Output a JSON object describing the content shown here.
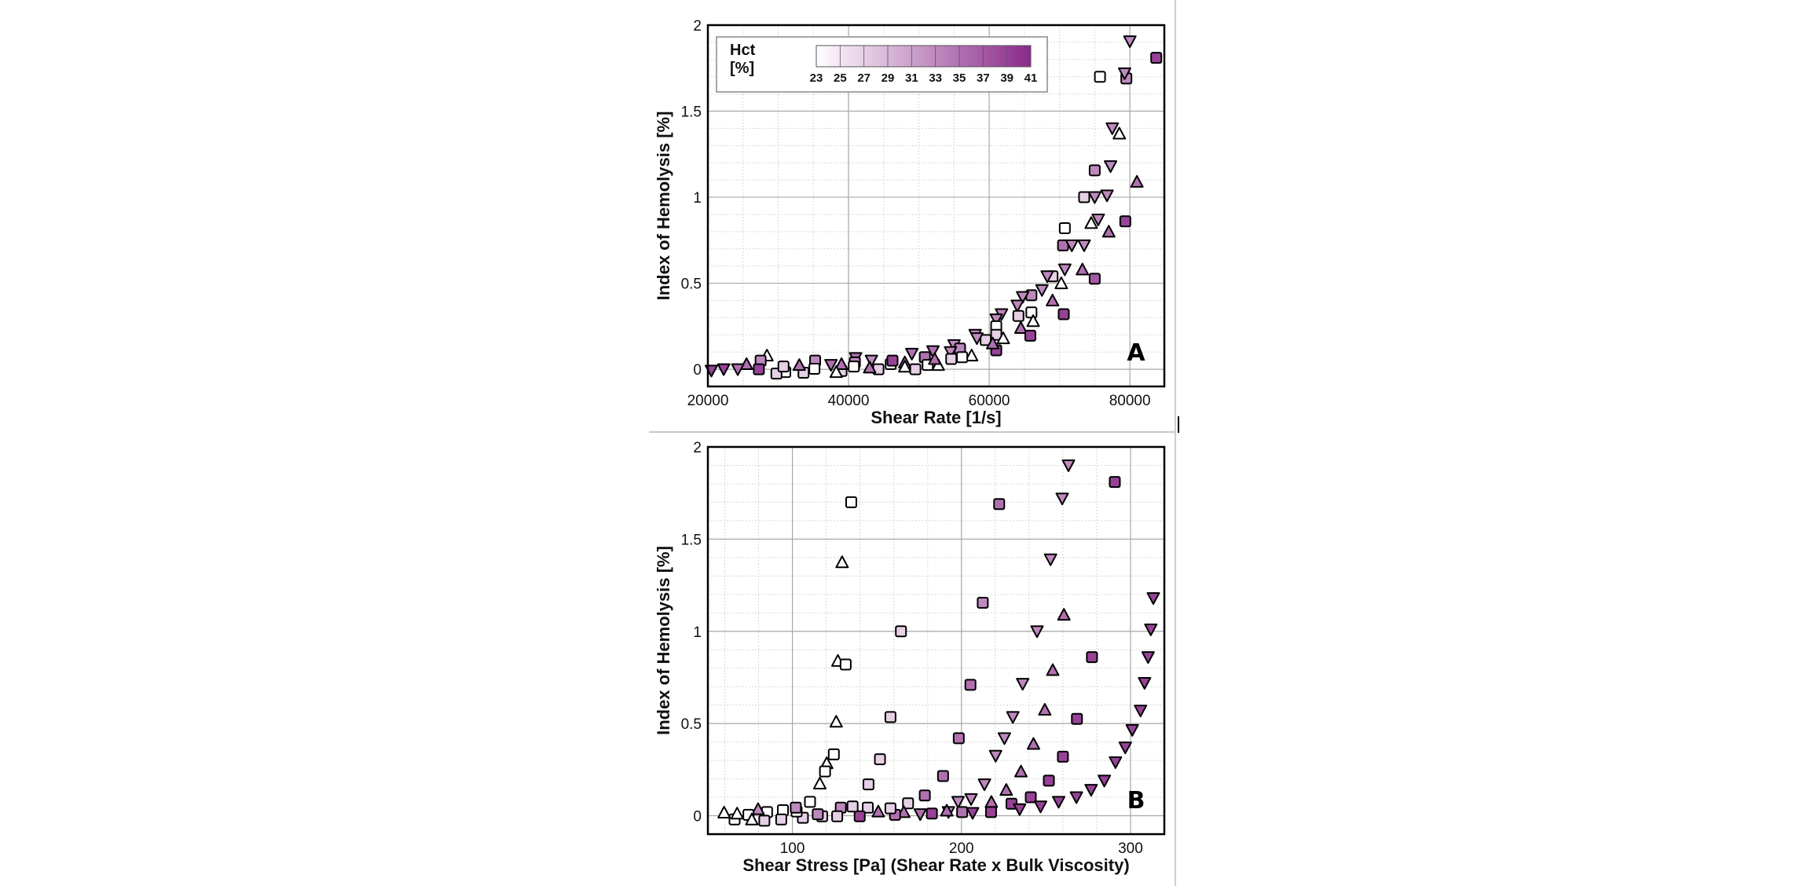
{
  "colorbar": {
    "title_line1": "Hct",
    "title_line2": "[%]",
    "ticks": [
      "23",
      "25",
      "27",
      "29",
      "31",
      "33",
      "35",
      "37",
      "39",
      "41"
    ],
    "range": [
      23,
      41
    ],
    "color_min": "#ffffff",
    "color_max": "#8a2a8a"
  },
  "marker_legend": {
    "s": "square",
    "u": "triangle-up",
    "d": "triangle-down"
  },
  "chart_data": [
    {
      "type": "scatter",
      "panel_label": "A",
      "xlabel": "Shear Rate [1/s]",
      "ylabel": "Index of Hemolysis [%]",
      "xlim": [
        20000,
        84900
      ],
      "ylim": [
        -0.1,
        2
      ],
      "xticks": [
        20000,
        40000,
        60000,
        80000
      ],
      "xtick_labels": [
        "20000",
        "40000",
        "60000",
        "80000"
      ],
      "yticks": [
        0,
        0.5,
        1,
        1.5,
        2
      ],
      "ytick_labels": [
        "0",
        "0.5",
        "1",
        "1.5",
        "2"
      ],
      "grid": true,
      "points_format": [
        "x",
        "y",
        "marker",
        "hct"
      ],
      "points": [
        [
          80000,
          1.906,
          "d",
          33
        ],
        [
          83750,
          1.81,
          "s",
          39
        ],
        [
          75750,
          1.7,
          "s",
          23
        ],
        [
          79500,
          1.69,
          "s",
          33
        ],
        [
          79250,
          1.72,
          "d",
          33
        ],
        [
          77500,
          1.4,
          "d",
          33
        ],
        [
          78500,
          1.37,
          "u",
          23
        ],
        [
          75000,
          1.156,
          "s",
          33
        ],
        [
          77250,
          1.18,
          "d",
          33
        ],
        [
          81000,
          1.09,
          "u",
          35
        ],
        [
          73500,
          1.0,
          "s",
          27
        ],
        [
          75000,
          1.0,
          "d",
          33
        ],
        [
          76750,
          1.01,
          "d",
          33
        ],
        [
          75500,
          0.87,
          "d",
          33
        ],
        [
          74500,
          0.85,
          "u",
          23
        ],
        [
          79350,
          0.86,
          "s",
          39
        ],
        [
          77000,
          0.8,
          "u",
          35
        ],
        [
          70750,
          0.82,
          "s",
          23
        ],
        [
          70500,
          0.72,
          "s",
          35
        ],
        [
          71750,
          0.72,
          "d",
          33
        ],
        [
          73500,
          0.72,
          "d",
          33
        ],
        [
          70750,
          0.58,
          "d",
          33
        ],
        [
          73250,
          0.58,
          "u",
          35
        ],
        [
          75000,
          0.526,
          "s",
          37
        ],
        [
          69000,
          0.54,
          "s",
          27
        ],
        [
          68250,
          0.54,
          "d",
          33
        ],
        [
          70250,
          0.5,
          "u",
          23
        ],
        [
          67500,
          0.46,
          "d",
          33
        ],
        [
          66000,
          0.43,
          "s",
          33
        ],
        [
          64750,
          0.42,
          "d",
          33
        ],
        [
          69000,
          0.4,
          "u",
          35
        ],
        [
          64000,
          0.37,
          "d",
          33
        ],
        [
          70600,
          0.32,
          "s",
          39
        ],
        [
          66000,
          0.33,
          "s",
          23
        ],
        [
          66250,
          0.28,
          "u",
          23
        ],
        [
          64150,
          0.31,
          "s",
          27
        ],
        [
          61750,
          0.32,
          "d",
          33
        ],
        [
          61000,
          0.29,
          "d",
          33
        ],
        [
          61000,
          0.25,
          "s",
          23
        ],
        [
          64500,
          0.24,
          "u",
          35
        ],
        [
          65850,
          0.195,
          "s",
          39
        ],
        [
          61000,
          0.2,
          "s",
          27
        ],
        [
          62000,
          0.18,
          "u",
          23
        ],
        [
          58000,
          0.2,
          "d",
          33
        ],
        [
          59500,
          0.17,
          "s",
          27
        ],
        [
          58250,
          0.18,
          "d",
          33
        ],
        [
          61000,
          0.11,
          "s",
          39
        ],
        [
          60500,
          0.15,
          "u",
          35
        ],
        [
          55000,
          0.14,
          "d",
          33
        ],
        [
          55850,
          0.12,
          "s",
          33
        ],
        [
          54500,
          0.1,
          "d",
          33
        ],
        [
          57500,
          0.08,
          "u",
          23
        ],
        [
          56150,
          0.07,
          "s",
          23
        ],
        [
          54600,
          0.06,
          "s",
          27
        ],
        [
          52000,
          0.105,
          "d",
          35
        ],
        [
          50850,
          0.07,
          "s",
          35
        ],
        [
          52750,
          0.025,
          "u",
          23
        ],
        [
          51250,
          0.025,
          "s",
          23
        ],
        [
          52250,
          0.06,
          "u",
          35
        ],
        [
          49000,
          0.09,
          "d",
          35
        ],
        [
          48000,
          0.04,
          "u",
          35
        ],
        [
          48000,
          0.015,
          "u",
          23
        ],
        [
          49500,
          0.0,
          "s",
          27
        ],
        [
          46000,
          0.03,
          "s",
          23
        ],
        [
          46250,
          0.05,
          "s",
          39
        ],
        [
          44250,
          0.0,
          "s",
          27
        ],
        [
          43250,
          0.05,
          "d",
          33
        ],
        [
          43000,
          0.01,
          "u",
          35
        ],
        [
          41000,
          0.065,
          "d",
          35
        ],
        [
          40900,
          0.04,
          "s",
          33
        ],
        [
          40750,
          0.016,
          "s",
          23
        ],
        [
          39000,
          -0.01,
          "s",
          27
        ],
        [
          39000,
          0.03,
          "u",
          35
        ],
        [
          37500,
          0.025,
          "d",
          35
        ],
        [
          38250,
          -0.016,
          "u",
          23
        ],
        [
          35250,
          0.05,
          "s",
          33
        ],
        [
          35150,
          0.003,
          "s",
          23
        ],
        [
          33600,
          -0.02,
          "s",
          27
        ],
        [
          33000,
          0.025,
          "u",
          35
        ],
        [
          31000,
          -0.016,
          "s",
          23
        ],
        [
          29750,
          -0.025,
          "s",
          27
        ],
        [
          30750,
          0.016,
          "s",
          27
        ],
        [
          28400,
          0.08,
          "u",
          23
        ],
        [
          27500,
          0.05,
          "s",
          33
        ],
        [
          27250,
          0.0,
          "s",
          39
        ],
        [
          25500,
          0.03,
          "u",
          35
        ],
        [
          24250,
          0.0,
          "d",
          35
        ],
        [
          22250,
          0.0,
          "d",
          39
        ],
        [
          20500,
          -0.008,
          "d",
          39
        ]
      ]
    },
    {
      "type": "scatter",
      "panel_label": "B",
      "xlabel": "Shear Stress [Pa] (Shear Rate x Bulk Viscosity)",
      "ylabel": "Index of Hemolysis [%]",
      "xlim": [
        50,
        320
      ],
      "ylim": [
        -0.1,
        2
      ],
      "xticks": [
        100,
        200,
        300
      ],
      "xtick_labels": [
        "100",
        "200",
        "300"
      ],
      "yticks": [
        0,
        0.5,
        1,
        1.5,
        2
      ],
      "ytick_labels": [
        "0",
        "0.5",
        "1",
        "1.5",
        "2"
      ],
      "grid": true,
      "points_format": [
        "x",
        "y",
        "marker",
        "hct"
      ],
      "points": [
        [
          263.3,
          1.9,
          "d",
          33
        ],
        [
          290.7,
          1.81,
          "s",
          39
        ],
        [
          134.8,
          1.7,
          "s",
          23
        ],
        [
          259.6,
          1.72,
          "d",
          33
        ],
        [
          222.3,
          1.69,
          "s",
          35
        ],
        [
          252.7,
          1.39,
          "d",
          33
        ],
        [
          129.4,
          1.375,
          "u",
          23
        ],
        [
          313.5,
          1.18,
          "d",
          39
        ],
        [
          212.6,
          1.155,
          "s",
          33
        ],
        [
          260.6,
          1.09,
          "u",
          35
        ],
        [
          164.2,
          1.0,
          "s",
          27
        ],
        [
          244.7,
          1.0,
          "d",
          33
        ],
        [
          312,
          1.01,
          "d",
          39
        ],
        [
          277.2,
          0.86,
          "s",
          39
        ],
        [
          310.4,
          0.86,
          "d",
          39
        ],
        [
          126.9,
          0.84,
          "u",
          23
        ],
        [
          131.5,
          0.82,
          "s",
          23
        ],
        [
          254,
          0.79,
          "u",
          35
        ],
        [
          205.3,
          0.71,
          "s",
          35
        ],
        [
          236.2,
          0.715,
          "d",
          33
        ],
        [
          308.3,
          0.72,
          "d",
          39
        ],
        [
          249.3,
          0.575,
          "u",
          35
        ],
        [
          305.9,
          0.57,
          "d",
          39
        ],
        [
          158,
          0.535,
          "s",
          27
        ],
        [
          125.9,
          0.51,
          "u",
          23
        ],
        [
          268.3,
          0.525,
          "s",
          39
        ],
        [
          230.4,
          0.535,
          "d",
          33
        ],
        [
          301,
          0.465,
          "d",
          39
        ],
        [
          198.4,
          0.42,
          "s",
          35
        ],
        [
          225.4,
          0.42,
          "d",
          33
        ],
        [
          242.6,
          0.39,
          "u",
          35
        ],
        [
          296.9,
          0.37,
          "d",
          39
        ],
        [
          124.5,
          0.333,
          "s",
          23
        ],
        [
          220.2,
          0.325,
          "d",
          33
        ],
        [
          260,
          0.32,
          "s",
          39
        ],
        [
          151.8,
          0.306,
          "s",
          27
        ],
        [
          291.1,
          0.29,
          "d",
          39
        ],
        [
          120.3,
          0.285,
          "u",
          23
        ],
        [
          119.3,
          0.24,
          "s",
          23
        ],
        [
          235.2,
          0.24,
          "u",
          35
        ],
        [
          189.1,
          0.215,
          "s",
          35
        ],
        [
          116.2,
          0.175,
          "u",
          23
        ],
        [
          284.5,
          0.19,
          "d",
          39
        ],
        [
          251.7,
          0.19,
          "s",
          39
        ],
        [
          145,
          0.17,
          "s",
          27
        ],
        [
          213.6,
          0.17,
          "d",
          33
        ],
        [
          226.5,
          0.14,
          "u",
          35
        ],
        [
          276.7,
          0.14,
          "d",
          39
        ],
        [
          178.3,
          0.11,
          "s",
          35
        ],
        [
          241,
          0.1,
          "s",
          39
        ],
        [
          268,
          0.1,
          "d",
          39
        ],
        [
          205.7,
          0.09,
          "d",
          33
        ],
        [
          198,
          0.075,
          "d",
          33
        ],
        [
          217.7,
          0.075,
          "u",
          35
        ],
        [
          257.5,
          0.075,
          "d",
          39
        ],
        [
          229.6,
          0.065,
          "s",
          39
        ],
        [
          168.4,
          0.067,
          "s",
          27
        ],
        [
          246.8,
          0.05,
          "d",
          39
        ],
        [
          234.4,
          0.035,
          "d",
          39
        ],
        [
          217.5,
          0.02,
          "s",
          39
        ],
        [
          200.4,
          0.02,
          "s",
          35
        ],
        [
          206.6,
          0.015,
          "d",
          39
        ],
        [
          192.3,
          0.02,
          "d",
          33
        ],
        [
          191.3,
          0.028,
          "u",
          35
        ],
        [
          182.5,
          0.012,
          "s",
          39
        ],
        [
          175.6,
          0.008,
          "d",
          35
        ],
        [
          165.9,
          0.02,
          "u",
          35
        ],
        [
          160.7,
          0.005,
          "s",
          35
        ],
        [
          158,
          0.04,
          "s",
          27
        ],
        [
          150.8,
          0.023,
          "u",
          35
        ],
        [
          144.6,
          0.044,
          "s",
          27
        ],
        [
          139.8,
          -0.003,
          "s",
          39
        ],
        [
          135.6,
          0.05,
          "s",
          27
        ],
        [
          128.6,
          0.044,
          "s",
          33
        ],
        [
          126.5,
          -0.003,
          "s",
          27
        ],
        [
          117.6,
          -0.003,
          "s",
          27
        ],
        [
          115,
          0.008,
          "s",
          33
        ],
        [
          110.4,
          0.075,
          "s",
          23
        ],
        [
          106.2,
          -0.011,
          "s",
          27
        ],
        [
          102.5,
          0.023,
          "s",
          23
        ],
        [
          102,
          0.044,
          "s",
          33
        ],
        [
          94.4,
          0.03,
          "s",
          23
        ],
        [
          93.4,
          -0.02,
          "s",
          27
        ],
        [
          85,
          0.02,
          "s",
          23
        ],
        [
          83.4,
          -0.027,
          "s",
          27
        ],
        [
          79.7,
          0.036,
          "u",
          33
        ],
        [
          74,
          0.005,
          "s",
          23
        ],
        [
          76,
          -0.02,
          "u",
          23
        ],
        [
          65.8,
          -0.02,
          "s",
          23
        ],
        [
          67.3,
          0.012,
          "u",
          23
        ],
        [
          59.6,
          0.017,
          "u",
          23
        ]
      ]
    }
  ]
}
